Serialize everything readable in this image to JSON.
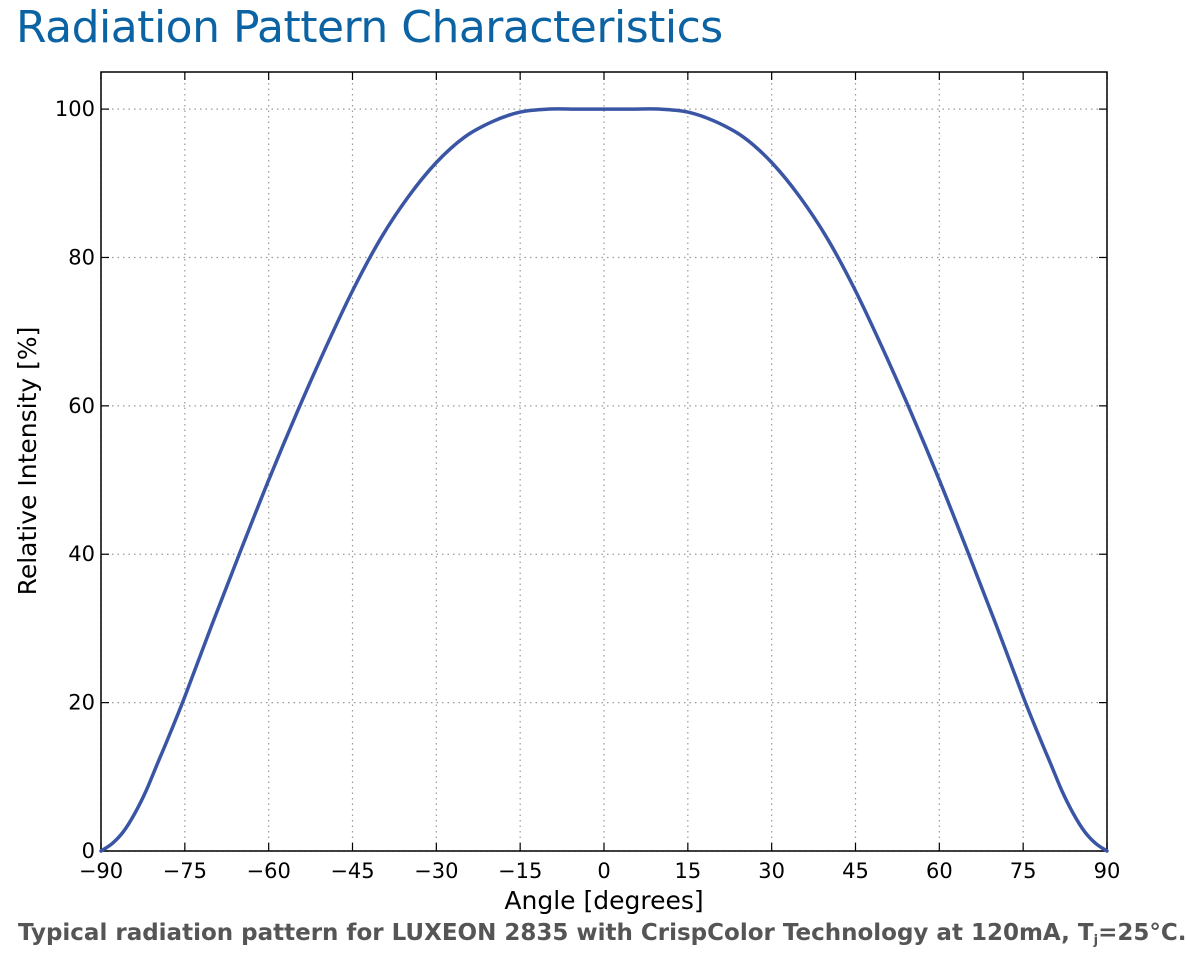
{
  "page": {
    "title": "Radiation Pattern Characteristics"
  },
  "caption": {
    "prefix": "Typical radiation pattern for LUXEON 2835 with CrispColor Technology at 120mA, T",
    "subscript": "j",
    "suffix": "=25°C."
  },
  "colors": {
    "title": "#0b63a3",
    "series": "#3a55a4",
    "caption": "#555555",
    "grid": "#999999"
  },
  "chart_data": {
    "type": "line",
    "xlabel": "Angle [degrees]",
    "ylabel": "Relative Intensity [%]",
    "xlim": [
      -90,
      90
    ],
    "ylim": [
      0,
      105
    ],
    "xticks": [
      -90,
      -75,
      -60,
      -45,
      -30,
      -15,
      0,
      15,
      30,
      45,
      60,
      75,
      90
    ],
    "xtick_labels": [
      "−90",
      "−75",
      "−60",
      "−45",
      "−30",
      "−15",
      "0",
      "15",
      "30",
      "45",
      "60",
      "75",
      "90"
    ],
    "yticks": [
      0,
      20,
      40,
      60,
      80,
      100
    ],
    "ytick_labels": [
      "0",
      "20",
      "40",
      "60",
      "80",
      "100"
    ],
    "grid": true,
    "series": [
      {
        "x": [
          -90,
          -88,
          -86,
          -84,
          -82,
          -80,
          -78,
          -75,
          -70,
          -65,
          -60,
          -55,
          -50,
          -45,
          -40,
          -35,
          -30,
          -25,
          -20,
          -15,
          -10,
          -5,
          0,
          5,
          10,
          15,
          20,
          25,
          30,
          35,
          40,
          45,
          50,
          55,
          60,
          65,
          70,
          75,
          78,
          80,
          82,
          84,
          86,
          88,
          90
        ],
        "y": [
          0,
          1,
          2.6,
          5,
          8,
          11.6,
          15.2,
          20.8,
          30.8,
          40.5,
          50,
          59,
          67.5,
          75.5,
          82.5,
          88.2,
          92.8,
          96.2,
          98.3,
          99.6,
          100,
          100,
          100,
          100,
          100,
          99.6,
          98.3,
          96.2,
          92.8,
          88.2,
          82.5,
          75.5,
          67.5,
          59,
          50,
          40.5,
          30.8,
          20.8,
          15.2,
          11.6,
          8,
          5,
          2.6,
          1,
          0
        ]
      }
    ]
  }
}
